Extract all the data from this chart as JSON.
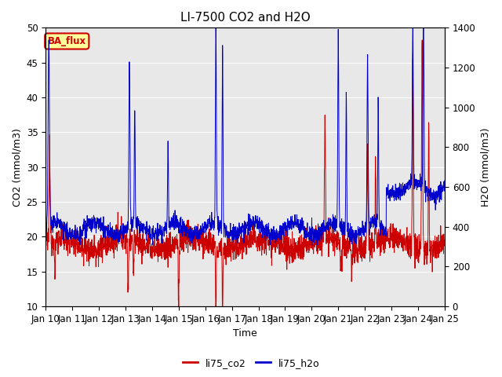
{
  "title": "LI-7500 CO2 and H2O",
  "ylabel_left": "CO2 (mmol/m3)",
  "ylabel_right": "H2O (mmol/m3)",
  "xlabel": "Time",
  "ylim_left": [
    10,
    50
  ],
  "ylim_right": [
    0,
    1400
  ],
  "xlim": [
    0,
    15
  ],
  "xtick_labels": [
    "Jan 10",
    "Jan 11",
    "Jan 12",
    "Jan 13",
    "Jan 14",
    "Jan 15",
    "Jan 16",
    "Jan 17",
    "Jan 18",
    "Jan 19",
    "Jan 20",
    "Jan 21",
    "Jan 22",
    "Jan 23",
    "Jan 24",
    "Jan 25"
  ],
  "color_co2": "#cc0000",
  "color_h2o": "#0000cc",
  "legend_labels": [
    "li75_co2",
    "li75_h2o"
  ],
  "ba_flux_text": "BA_flux",
  "ba_flux_bg": "#ffff99",
  "ba_flux_edge": "#cc0000",
  "plot_bg": "#e8e8e8",
  "grid_color": "#ffffff",
  "title_fontsize": 11,
  "axis_fontsize": 9,
  "tick_fontsize": 8.5
}
